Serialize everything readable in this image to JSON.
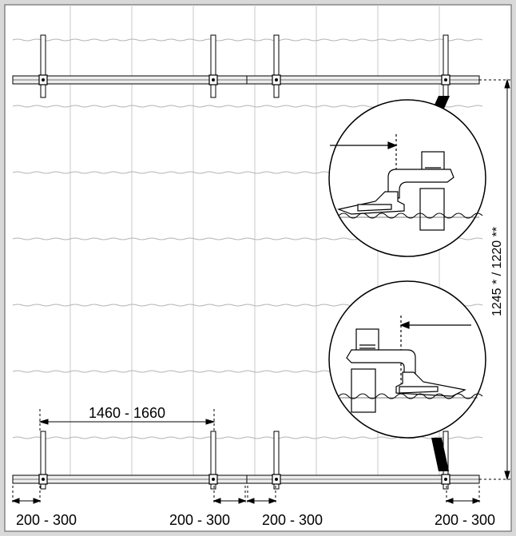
{
  "dimensions": {
    "rail_spacing": "1460 - 1660",
    "panel_height": "1245 * / 1220 **",
    "overhang_1": "200 - 300",
    "overhang_2": "200 - 300",
    "overhang_3": "200 - 300",
    "overhang_4": "200 - 300"
  },
  "colors": {
    "frame_bg": "#d9d9d9",
    "line": "#000000",
    "rail_fill": "#eeeeee",
    "wave": "#b4b4b4",
    "grid": "#c8c8c8"
  }
}
